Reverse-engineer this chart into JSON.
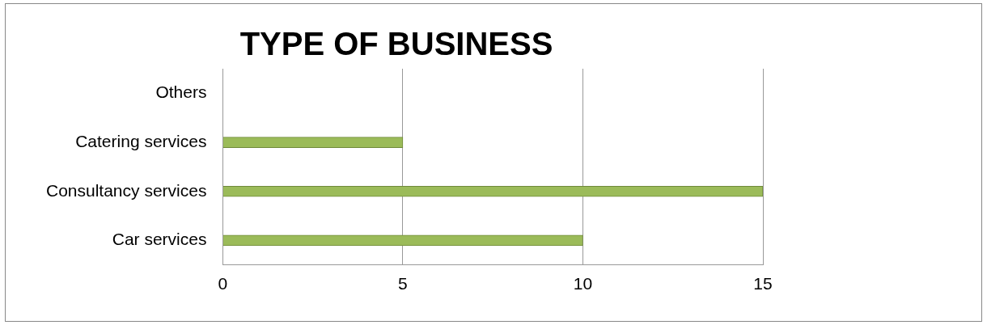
{
  "chart_data": {
    "type": "bar",
    "orientation": "horizontal",
    "title": "TYPE OF BUSINESS",
    "categories": [
      "Others",
      "Catering services",
      "Consultancy services",
      "Car services"
    ],
    "values": [
      0,
      5,
      15,
      10
    ],
    "color": "#9bbb59",
    "xlim": [
      0,
      15
    ],
    "xticks": [
      0,
      5,
      10,
      15
    ],
    "grid": "x"
  }
}
